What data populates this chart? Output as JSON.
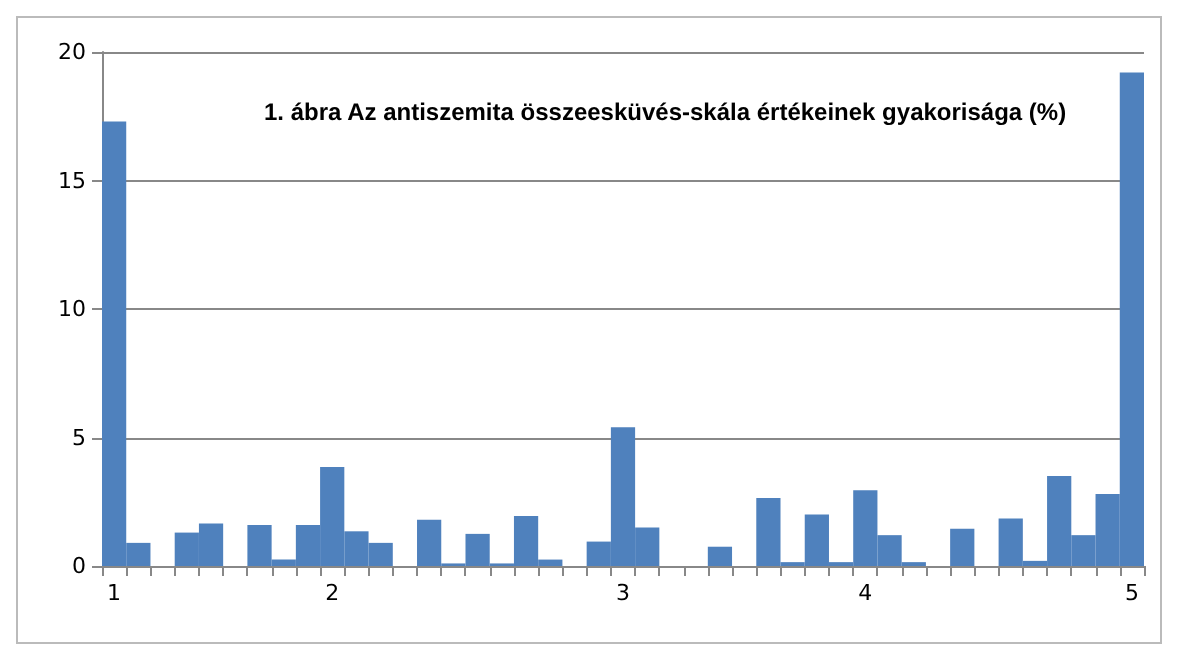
{
  "chart_data": {
    "type": "bar",
    "title": "1. ábra Az antiszemita összeesküvés-skála értékeinek gyakorisága (%)",
    "categories": [
      "1",
      null,
      null,
      null,
      null,
      null,
      null,
      null,
      null,
      "2",
      null,
      null,
      null,
      null,
      null,
      null,
      null,
      null,
      null,
      null,
      null,
      "3",
      null,
      null,
      null,
      null,
      null,
      null,
      null,
      null,
      null,
      "4",
      null,
      null,
      null,
      null,
      null,
      null,
      null,
      null,
      null,
      null,
      "5"
    ],
    "values": [
      17.3,
      0.9,
      0,
      1.3,
      1.65,
      0,
      1.6,
      0.25,
      1.6,
      3.85,
      1.35,
      0.9,
      0,
      1.8,
      0.1,
      1.25,
      0.1,
      1.95,
      0.25,
      0,
      0.95,
      5.4,
      1.5,
      0,
      0,
      0.75,
      0,
      2.65,
      0.15,
      2.0,
      0.15,
      2.95,
      1.2,
      0.15,
      0,
      1.45,
      0,
      1.85,
      0.2,
      3.5,
      1.2,
      2.8,
      19.2
    ],
    "color": "#4f81bd",
    "ylim": [
      0,
      20
    ],
    "yticks": [
      0,
      5,
      10,
      15,
      20
    ],
    "grid": "y"
  }
}
